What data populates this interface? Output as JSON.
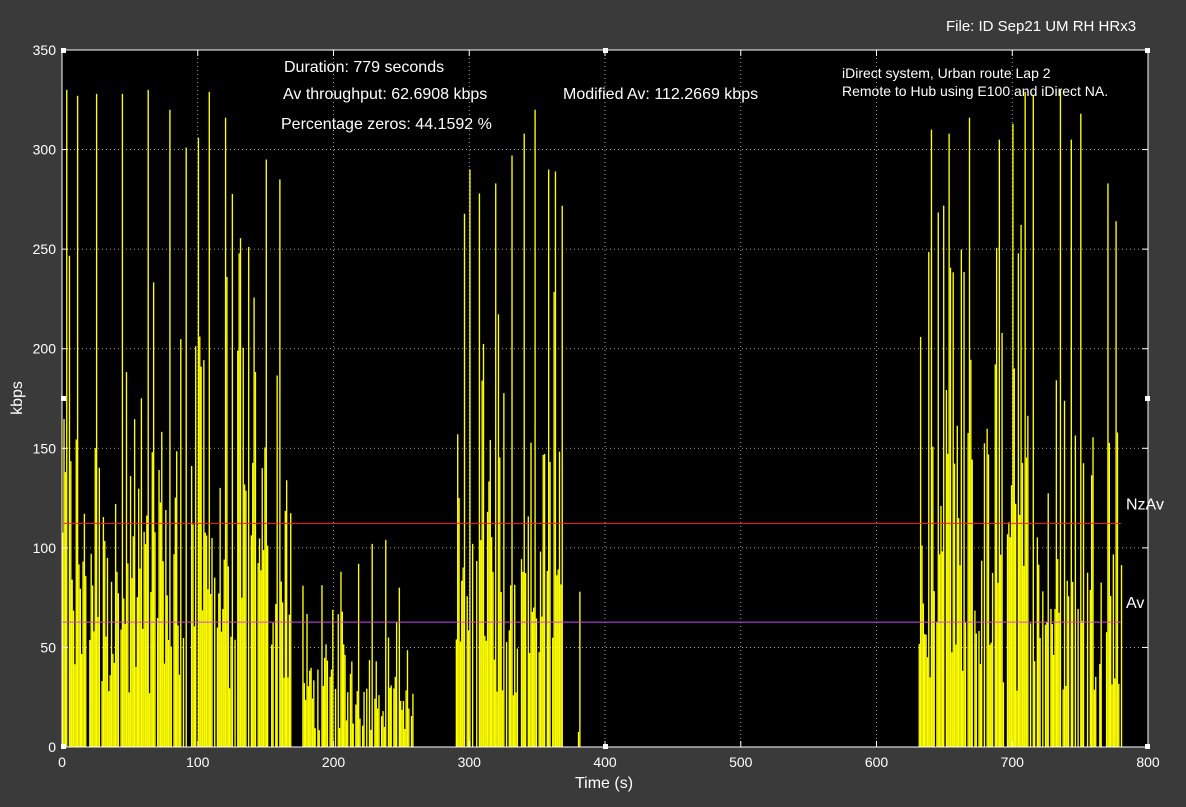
{
  "file_label": "File: ID Sep21 UM RH HRx3",
  "colors": {
    "figure_bg": "#3a3a3a",
    "axes_bg": "#000000",
    "bars": "#ffff00",
    "nzav_line": "#ff2020",
    "av_line": "#cc44ff",
    "grid": "#ffffff",
    "text": "#ffffff"
  },
  "chart_data": {
    "type": "bar",
    "title": "",
    "xlabel": "Time (s)",
    "ylabel": "kbps",
    "xlim": [
      0,
      800
    ],
    "ylim": [
      0,
      350
    ],
    "xticks": [
      0,
      100,
      200,
      300,
      400,
      500,
      600,
      700,
      800
    ],
    "yticks": [
      0,
      50,
      100,
      150,
      200,
      250,
      300,
      350
    ],
    "grid": true,
    "annotations": {
      "duration": "Duration: 779 seconds",
      "av_throughput": "Av throughput: 62.6908 kbps",
      "percentage_zeros": "Percentage zeros: 44.1592 %",
      "modified_av": "Modified Av: 112.2669 kbps",
      "system_line1": "iDirect system, Urban route Lap 2",
      "system_line2": "Remote to Hub using E100 and iDirect NA."
    },
    "reference_lines": [
      {
        "name": "NzAv",
        "value": 112.2669,
        "color": "#ff2020"
      },
      {
        "name": "Av",
        "value": 62.6908,
        "color": "#cc44ff"
      }
    ],
    "bursts": [
      {
        "start": 0,
        "end": 168,
        "peaks": [
          [
            3,
            330
          ],
          [
            11,
            327
          ],
          [
            25,
            328
          ],
          [
            44,
            328
          ],
          [
            63,
            330
          ],
          [
            79,
            320
          ],
          [
            91,
            301
          ],
          [
            100,
            306
          ],
          [
            108,
            329
          ],
          [
            120,
            316
          ],
          [
            150,
            295
          ],
          [
            160,
            285
          ]
        ]
      },
      {
        "start": 176,
        "end": 258,
        "peaks": [
          [
            205,
            88
          ],
          [
            218,
            92
          ],
          [
            228,
            102
          ],
          [
            238,
            104
          ],
          [
            248,
            80
          ]
        ]
      },
      {
        "start": 290,
        "end": 368,
        "peaks": [
          [
            292,
            125
          ],
          [
            300,
            290
          ],
          [
            307,
            278
          ],
          [
            319,
            283
          ],
          [
            331,
            297
          ],
          [
            340,
            308
          ],
          [
            348,
            320
          ],
          [
            358,
            290
          ],
          [
            363,
            289
          ]
        ]
      },
      {
        "start": 380,
        "end": 382,
        "peaks": [
          [
            381,
            78
          ]
        ]
      },
      {
        "start": 630,
        "end": 780,
        "peaks": [
          [
            640,
            310
          ],
          [
            653,
            308
          ],
          [
            668,
            316
          ],
          [
            690,
            305
          ],
          [
            700,
            313
          ],
          [
            709,
            329
          ],
          [
            715,
            327
          ],
          [
            735,
            330
          ],
          [
            743,
            305
          ],
          [
            750,
            318
          ],
          [
            770,
            283
          ],
          [
            776,
            264
          ]
        ]
      }
    ]
  }
}
